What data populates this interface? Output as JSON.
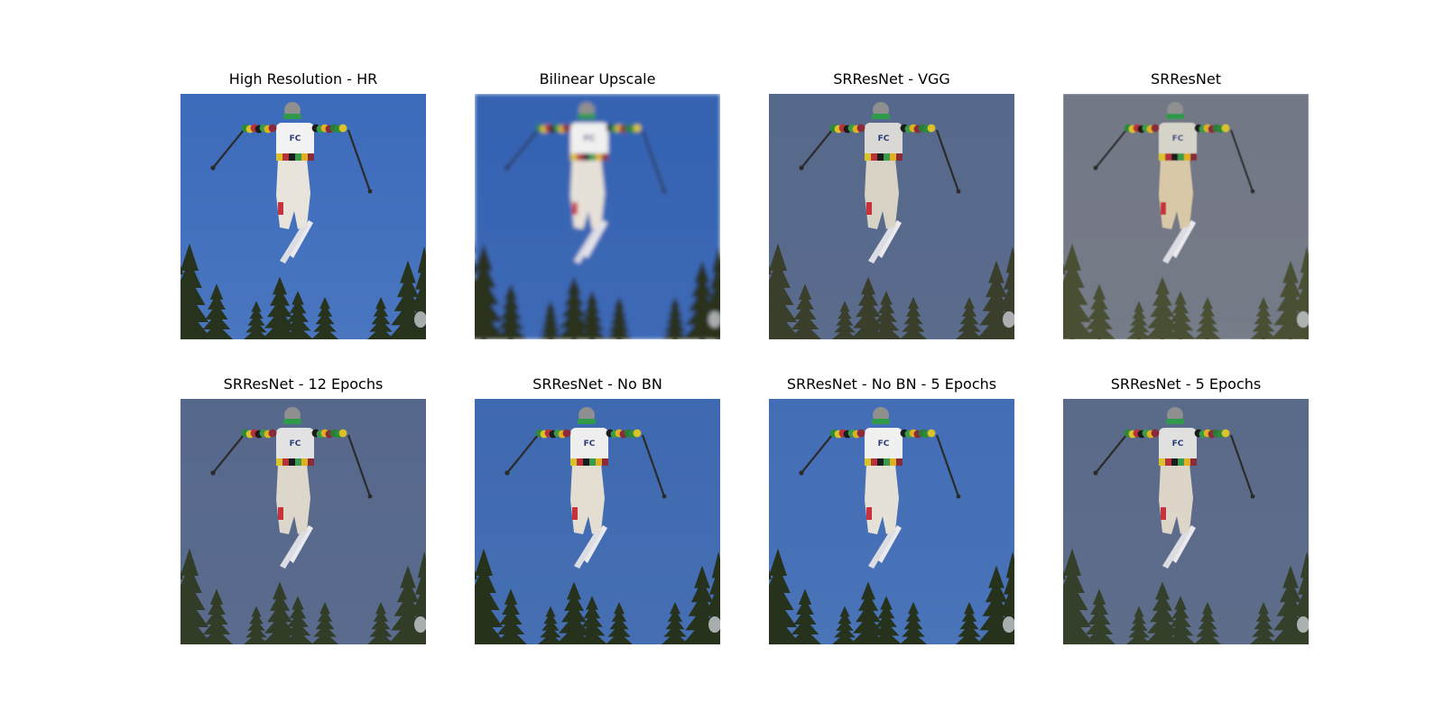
{
  "figure": {
    "panels": [
      {
        "title": "High Resolution - HR",
        "sky": "#4a76c0",
        "sky_top": "#3c6bbb",
        "tree": "#27331c",
        "blur": 0,
        "suit": "#e8e4dc",
        "jacket": "#f2f2f2"
      },
      {
        "title": "Bilinear Upscale",
        "sky": "#3e69b6",
        "sky_top": "#3463b2",
        "tree": "#2a331f",
        "blur": 2.2,
        "suit": "#e6e1d8",
        "jacket": "#f0f0f0"
      },
      {
        "title": "SRResNet - VGG",
        "sky": "#5a6b8c",
        "sky_top": "#56698c",
        "tree": "#3a3f2c",
        "blur": 0,
        "suit": "#d8d2c4",
        "jacket": "#d9d8d5"
      },
      {
        "title": "SRResNet",
        "sky": "#767b88",
        "sky_top": "#727886",
        "tree": "#485033",
        "blur": 0.4,
        "suit": "#d9c8a8",
        "jacket": "#d6d4c9"
      },
      {
        "title": "SRResNet - 12 Epochs",
        "sky": "#5a6b8d",
        "sky_top": "#56688c",
        "tree": "#323d27",
        "blur": 0,
        "suit": "#dcd6cb",
        "jacket": "#e2e2e2"
      },
      {
        "title": "SRResNet - No BN",
        "sky": "#466fb3",
        "sky_top": "#3f69b0",
        "tree": "#27321d",
        "blur": 0,
        "suit": "#e3ddd2",
        "jacket": "#eeeeee"
      },
      {
        "title": "SRResNet - No BN - 5 Epochs",
        "sky": "#4a74b8",
        "sky_top": "#436db5",
        "tree": "#27321d",
        "blur": 0,
        "suit": "#e6e1d7",
        "jacket": "#f0f0f0"
      },
      {
        "title": "SRResNet - 5 Epochs",
        "sky": "#5e6d8a",
        "sky_top": "#5a6a89",
        "tree": "#34402a",
        "blur": 0,
        "suit": "#ddd6c8",
        "jacket": "#e0e0de"
      }
    ]
  }
}
